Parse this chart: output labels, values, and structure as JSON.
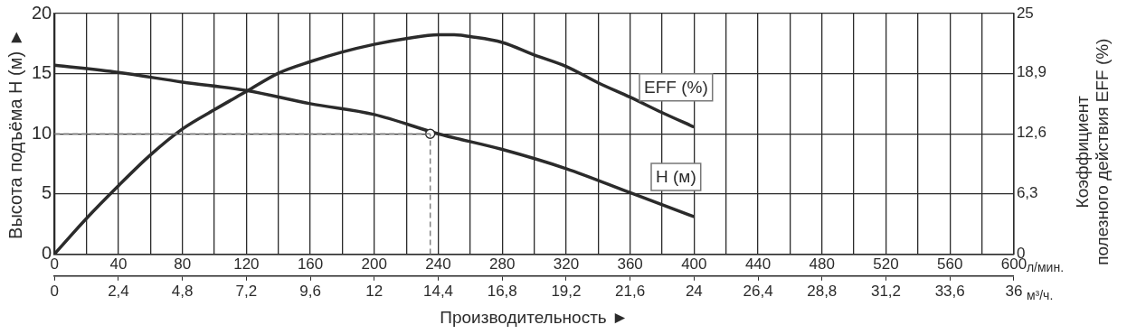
{
  "chart_data": {
    "type": "line",
    "xlabel": "Производительность ►",
    "ylabel": "Высота подъёма H (м) ►",
    "y2label": "Коэффициент\nполезного действия EFF (%)",
    "annotations": [
      "л/мин.",
      "м³/ч."
    ],
    "xlim": [
      0,
      600
    ],
    "xticks": [
      0,
      {
        "value": 20,
        "label": null
      },
      40,
      {
        "value": 60,
        "label": null
      },
      80,
      {
        "value": 100,
        "label": null
      },
      120,
      {
        "value": 140,
        "label": null
      },
      160,
      {
        "value": 180,
        "label": null
      },
      200,
      {
        "value": 220,
        "label": null
      },
      240,
      {
        "value": 260,
        "label": null
      },
      280,
      {
        "value": 300,
        "label": null
      },
      320,
      {
        "value": 340,
        "label": null
      },
      360,
      {
        "value": 380,
        "label": null
      },
      400,
      {
        "value": 420,
        "label": null
      },
      440,
      {
        "value": 460,
        "label": null
      },
      480,
      {
        "value": 500,
        "label": null
      },
      520,
      {
        "value": 540,
        "label": null
      },
      560,
      {
        "value": 580,
        "label": null
      },
      600
    ],
    "x2lim": [
      0,
      36
    ],
    "x2ticks": [
      0,
      {
        "value": 2.4,
        "label": "2,4"
      },
      {
        "value": 4.8,
        "label": "4,8"
      },
      {
        "value": 7.2,
        "label": "7,2"
      },
      {
        "value": 9.6,
        "label": "9,6"
      },
      12,
      {
        "value": 14.4,
        "label": "14,4"
      },
      {
        "value": 16.8,
        "label": "16,8"
      },
      {
        "value": 19.2,
        "label": "19,2"
      },
      {
        "value": 21.6,
        "label": "21,6"
      },
      24,
      {
        "value": 26.4,
        "label": "26,4"
      },
      {
        "value": 28.8,
        "label": "28,8"
      },
      {
        "value": 31.2,
        "label": "31,2"
      },
      {
        "value": 33.6,
        "label": "33,6"
      },
      36
    ],
    "ylim": [
      0,
      20
    ],
    "yticks": [
      0,
      5,
      10,
      15,
      20
    ],
    "y2lim": [
      0,
      25
    ],
    "y2ticks": [
      0,
      {
        "value": 6.3,
        "label": "6,3"
      },
      {
        "value": 12.6,
        "label": "12,6"
      },
      {
        "value": 18.9,
        "label": "18,9"
      },
      25
    ],
    "grid": true,
    "legend": false,
    "marker": "none",
    "line_style": "solid",
    "ref_lines": [
      {
        "axis": "y",
        "value": 10,
        "color": "#808080",
        "line_style": "dashed"
      },
      {
        "axis": "x",
        "value": 235,
        "color": "#808080",
        "line_style": "dashed"
      }
    ],
    "series": [
      {
        "name": "EFF (%)",
        "color": "#2b2b2b",
        "axis": "y2",
        "x": [
          0,
          20,
          40,
          60,
          80,
          100,
          120,
          140,
          160,
          180,
          200,
          220,
          240,
          250,
          260,
          280,
          300,
          320,
          340,
          360,
          380,
          400
        ],
        "values": [
          0,
          3.7,
          7.1,
          10.3,
          13.0,
          15.0,
          16.9,
          18.8,
          20.0,
          21.0,
          21.8,
          22.4,
          22.8,
          22.8,
          22.6,
          22.0,
          20.7,
          19.5,
          17.8,
          16.3,
          14.7,
          13.2
        ]
      },
      {
        "name": "H (м)",
        "color": "#2b2b2b",
        "x": [
          0,
          40,
          80,
          120,
          160,
          200,
          240,
          280,
          320,
          360,
          400
        ],
        "values": [
          15.7,
          15.1,
          14.3,
          13.6,
          12.5,
          11.6,
          10.0,
          8.7,
          7.1,
          5.1,
          3.1
        ]
      },
      {
        "type": "scatter",
        "color": "#ffffff",
        "marker": "circle",
        "x": [
          235
        ],
        "values": [
          10
        ]
      }
    ]
  }
}
